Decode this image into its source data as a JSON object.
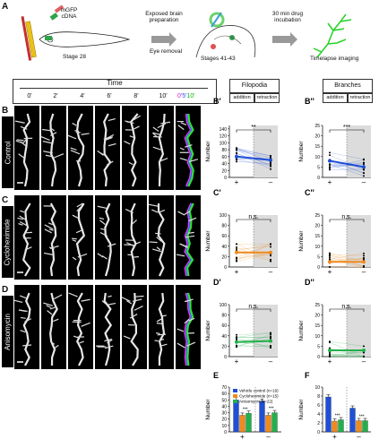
{
  "panel_a": {
    "letter": "A",
    "dna_label_line1": "mGFP",
    "dna_label_line2": "cDNA",
    "stage_left": "Stage 28",
    "step1_line1": "Exposed brain",
    "step1_line2": "preparation",
    "step1_line3": "Eye removal",
    "stage_middle": "Stages 41-43",
    "step2_line1": "30 min drug",
    "step2_line2": "incubation",
    "step_final": "Timelapse imaging"
  },
  "time_header": {
    "title": "Time",
    "times": [
      "0'",
      "2'",
      "4'",
      "6'",
      "8'",
      "10'"
    ],
    "overlay_0": "0'",
    "overlay_5": "5'",
    "overlay_10": "10'"
  },
  "rows": [
    {
      "letter": "B",
      "label": "Control"
    },
    {
      "letter": "C",
      "label": "Cycloheximide"
    },
    {
      "letter": "D",
      "label": "Anisomycin"
    }
  ],
  "column_headers": {
    "filopodia": "Filopodia",
    "branches": "Branches",
    "addition": "addition",
    "retraction": "retraction"
  },
  "colors": {
    "control": "#1f4fd6",
    "cycloheximide": "#f08a1c",
    "anisomycin": "#22b04a",
    "shade": "#dcdcdc"
  },
  "chart_data": [
    {
      "panel": "B'",
      "type": "line",
      "x": [
        "+",
        "–"
      ],
      "ylabel": "Number",
      "ylim": [
        0,
        150
      ],
      "yticks": [
        0,
        20,
        40,
        60,
        80,
        100,
        120,
        140
      ],
      "mean": [
        60,
        50
      ],
      "significance": "**",
      "color_key": "control"
    },
    {
      "panel": "B''",
      "type": "line",
      "x": [
        "+",
        "–"
      ],
      "ylabel": "Number",
      "ylim": [
        0,
        25
      ],
      "yticks": [
        0,
        5,
        10,
        15,
        20,
        25
      ],
      "mean": [
        8,
        5
      ],
      "significance": "***",
      "color_key": "control"
    },
    {
      "panel": "C'",
      "type": "line",
      "x": [
        "+",
        "–"
      ],
      "ylabel": "Number",
      "ylim": [
        0,
        100
      ],
      "yticks": [
        0,
        20,
        40,
        60,
        80,
        100
      ],
      "mean": [
        28,
        28
      ],
      "significance": "n.s.",
      "color_key": "cycloheximide"
    },
    {
      "panel": "C''",
      "type": "line",
      "x": [
        "+",
        "–"
      ],
      "ylabel": "Number",
      "ylim": [
        0,
        25
      ],
      "yticks": [
        0,
        5,
        10,
        15,
        20,
        25
      ],
      "mean": [
        2.5,
        2.5
      ],
      "significance": "n.s.",
      "color_key": "cycloheximide"
    },
    {
      "panel": "D'",
      "type": "line",
      "x": [
        "+",
        "–"
      ],
      "ylabel": "Number",
      "ylim": [
        0,
        100
      ],
      "yticks": [
        0,
        20,
        40,
        60,
        80,
        100
      ],
      "mean": [
        28,
        30
      ],
      "significance": "n.s.",
      "color_key": "anisomycin"
    },
    {
      "panel": "D''",
      "type": "line",
      "x": [
        "+",
        "–"
      ],
      "ylabel": "Number",
      "ylim": [
        0,
        25
      ],
      "yticks": [
        0,
        5,
        10,
        15,
        20,
        25
      ],
      "mean": [
        3,
        3
      ],
      "significance": "n.s.",
      "color_key": "anisomycin"
    },
    {
      "panel": "E",
      "type": "bar",
      "categories": [
        "+",
        "–"
      ],
      "ylabel": "Number",
      "ylim": [
        0,
        70
      ],
      "yticks": [
        0,
        10,
        20,
        30,
        40,
        50,
        60,
        70
      ],
      "series": [
        {
          "name": "Vehicle control (n=19)",
          "values": [
            50,
            48
          ],
          "color_key": "control"
        },
        {
          "name": "Cycloheximide (n=15)",
          "values": [
            26,
            26
          ],
          "color_key": "cycloheximide"
        },
        {
          "name": "Anisomycin (n=22)",
          "values": [
            29,
            30
          ],
          "color_key": "anisomycin"
        }
      ],
      "annotations": [
        "***",
        "***"
      ]
    },
    {
      "panel": "F",
      "type": "bar",
      "categories": [
        "+",
        "–"
      ],
      "ylabel": "Number",
      "ylim": [
        0,
        10
      ],
      "yticks": [
        0,
        2,
        4,
        6,
        8,
        10
      ],
      "series": [
        {
          "name": "Vehicle control",
          "values": [
            7.8,
            5.3
          ],
          "color_key": "control"
        },
        {
          "name": "Cycloheximide",
          "values": [
            2.4,
            2.5
          ],
          "color_key": "cycloheximide"
        },
        {
          "name": "Anisomycin",
          "values": [
            2.7,
            2.5
          ],
          "color_key": "anisomycin"
        }
      ],
      "annotations": [
        "***",
        "***"
      ]
    }
  ]
}
